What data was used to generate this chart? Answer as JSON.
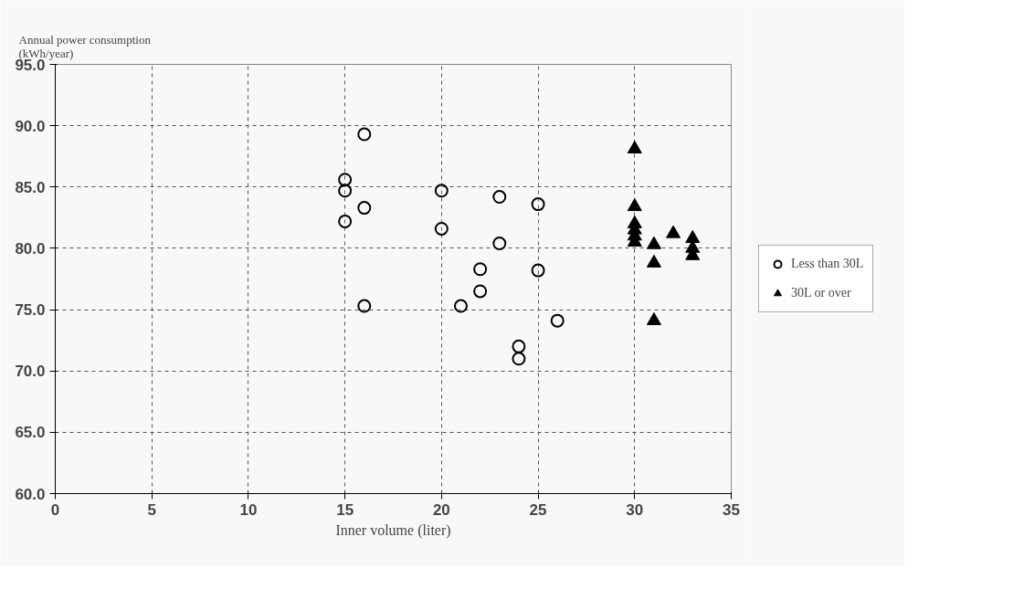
{
  "chart_data": {
    "type": "scatter",
    "ylabel": "Annual power consumption\n(kWh/year)",
    "xlabel": "Inner volume (liter)",
    "xlim": [
      0,
      35
    ],
    "xticks": [
      0,
      5,
      10,
      15,
      20,
      25,
      30,
      35
    ],
    "ylim": [
      60,
      95
    ],
    "yticks": [
      {
        "value": 60,
        "label": "60.0"
      },
      {
        "value": 65,
        "label": "65.0"
      },
      {
        "value": 70,
        "label": "70.0"
      },
      {
        "value": 75,
        "label": "75.0"
      },
      {
        "value": 80,
        "label": "80.0"
      },
      {
        "value": 85,
        "label": "85.0"
      },
      {
        "value": 90,
        "label": "90.0"
      },
      {
        "value": 95,
        "label": "95.0"
      }
    ],
    "grid": true,
    "legend": "right",
    "series": [
      {
        "name": "Less than 30L",
        "color": "#000000",
        "marker": "circle",
        "x": [
          15,
          15,
          15,
          16,
          16,
          16,
          20,
          20,
          21,
          22,
          22,
          23,
          23,
          25,
          25,
          24,
          24,
          26
        ],
        "values": [
          85.6,
          84.7,
          82.2,
          89.3,
          83.3,
          75.3,
          84.7,
          81.6,
          75.3,
          78.3,
          76.5,
          84.2,
          80.4,
          83.6,
          78.2,
          72.0,
          71.0,
          74.1
        ]
      },
      {
        "name": "30L or over",
        "color": "#000000",
        "marker": "triangle",
        "x": [
          30,
          30,
          30,
          30,
          30,
          30,
          31,
          31,
          31,
          32,
          33,
          33,
          33
        ],
        "values": [
          88.1,
          83.4,
          82.0,
          81.5,
          81.0,
          80.5,
          80.3,
          78.8,
          74.1,
          81.2,
          80.8,
          80.0,
          79.4
        ]
      }
    ]
  }
}
